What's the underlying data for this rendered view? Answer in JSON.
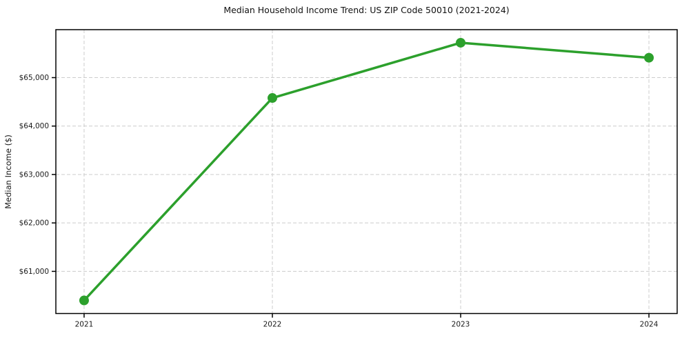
{
  "chart_data": {
    "type": "line",
    "title": "Median Household Income Trend: US ZIP Code 50010 (2021-2024)",
    "xlabel": "",
    "ylabel": "Median Income ($)",
    "x": [
      2021,
      2022,
      2023,
      2024
    ],
    "xtick_labels": [
      "2021",
      "2022",
      "2023",
      "2024"
    ],
    "series": [
      {
        "name": "Median Household Income",
        "values": [
          60400,
          64580,
          65720,
          65410
        ],
        "color": "#2ca02c"
      }
    ],
    "yticks": [
      61000,
      62000,
      63000,
      64000,
      65000
    ],
    "ytick_labels": [
      "$61,000",
      "$62,000",
      "$63,000",
      "$64,000",
      "$65,000"
    ],
    "xlim": [
      2020.85,
      2024.15
    ],
    "ylim": [
      60130,
      65990
    ],
    "grid": "dashed",
    "legend": "none",
    "colors": {
      "line": "#2ca02c",
      "marker": "#2ca02c",
      "grid": "#cccccc",
      "frame": "#000000",
      "text": "#1a1a1a",
      "background": "#ffffff"
    }
  }
}
